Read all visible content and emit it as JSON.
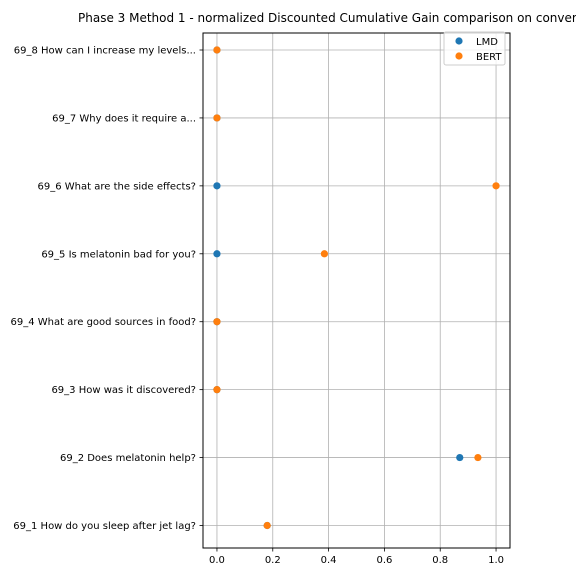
{
  "chart_data": {
    "type": "scatter",
    "title": "Phase 3 Method 1 - normalized Discounted Cumulative Gain comparison on conver",
    "xlabel": "",
    "ylabel": "",
    "xlim": [
      -0.05,
      1.05
    ],
    "x_ticks": [
      "0.0",
      "0.2",
      "0.4",
      "0.6",
      "0.8",
      "1.0"
    ],
    "grid": true,
    "legend_position": "top-right",
    "categories": [
      "69_1 How do you sleep after jet lag?",
      "69_2 Does melatonin help?",
      "69_3 How was it discovered?",
      "69_4 What are good sources in food?",
      "69_5 Is melatonin bad for you?",
      "69_6 What are the side effects?",
      "69_7 Why does it require a...",
      "69_8 How can I increase my levels..."
    ],
    "series": [
      {
        "name": "LMD",
        "color": "#1f77b4",
        "values": [
          0.18,
          0.87,
          0.0,
          0.0,
          0.0,
          0.0,
          0.0,
          0.0
        ]
      },
      {
        "name": "BERT",
        "color": "#ff7f0e",
        "values": [
          0.18,
          0.935,
          0.0,
          0.0,
          0.385,
          1.0,
          0.0,
          0.0
        ]
      }
    ]
  }
}
